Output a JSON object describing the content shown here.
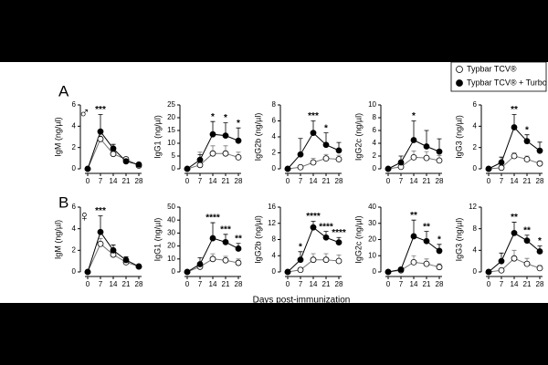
{
  "figure": {
    "panel_labels": [
      "A",
      "B"
    ],
    "sex_symbols": [
      "♂",
      "♀"
    ],
    "x_label": "Days post-immunization"
  },
  "chart_data": [
    {
      "type": "line",
      "y_label": "IgM (ng/µl)",
      "x": [
        0,
        7,
        14,
        21,
        28
      ],
      "xlim": [
        0,
        28
      ],
      "xticks": [
        0,
        7,
        14,
        21,
        28
      ],
      "ylim": [
        0,
        6
      ],
      "yticks": [
        0,
        2,
        4,
        6
      ],
      "series": [
        {
          "name": "Typbar TCV®",
          "color": "#777777",
          "marker_fill": "#ffffff",
          "values": [
            0,
            2.8,
            1.4,
            0.9,
            0.3
          ],
          "errors": [
            0,
            0.5,
            0.3,
            0.2,
            0.1
          ]
        },
        {
          "name": "Typbar TCV® + Turbo",
          "color": "#000000",
          "marker_fill": "#000000",
          "values": [
            0,
            3.5,
            1.9,
            0.7,
            0.4
          ],
          "errors": [
            0,
            1.6,
            0.4,
            0.2,
            0.1
          ]
        }
      ],
      "annotations": [
        {
          "x": 7,
          "text": "***"
        }
      ]
    },
    {
      "type": "line",
      "y_label": "IgG1 (ng/µl)",
      "x": [
        0,
        7,
        14,
        21,
        28
      ],
      "xlim": [
        0,
        28
      ],
      "xticks": [
        0,
        7,
        14,
        21,
        28
      ],
      "ylim": [
        0,
        25
      ],
      "yticks": [
        0,
        5,
        10,
        15,
        20,
        25
      ],
      "series": [
        {
          "name": "Typbar TCV®",
          "color": "#777777",
          "marker_fill": "#ffffff",
          "values": [
            0,
            1.5,
            6,
            6,
            4.5
          ],
          "errors": [
            0,
            5,
            3,
            3,
            2
          ]
        },
        {
          "name": "Typbar TCV® + Turbo",
          "color": "#000000",
          "marker_fill": "#000000",
          "values": [
            0,
            3.5,
            13.5,
            13,
            11
          ],
          "errors": [
            0,
            2,
            5,
            5,
            5
          ]
        }
      ],
      "annotations": [
        {
          "x": 14,
          "text": "*"
        },
        {
          "x": 21,
          "text": "*"
        },
        {
          "x": 28,
          "text": "*"
        }
      ]
    },
    {
      "type": "line",
      "y_label": "IgG2b (ng/µl)",
      "x": [
        0,
        7,
        14,
        21,
        28
      ],
      "xlim": [
        0,
        28
      ],
      "xticks": [
        0,
        7,
        14,
        21,
        28
      ],
      "ylim": [
        0,
        8
      ],
      "yticks": [
        0,
        2,
        4,
        6,
        8
      ],
      "series": [
        {
          "name": "Typbar TCV®",
          "color": "#777777",
          "marker_fill": "#ffffff",
          "values": [
            0,
            0.2,
            0.8,
            1.3,
            1.2
          ],
          "errors": [
            0,
            0.2,
            0.5,
            0.5,
            0.5
          ]
        },
        {
          "name": "Typbar TCV® + Turbo",
          "color": "#000000",
          "marker_fill": "#000000",
          "values": [
            0,
            1.8,
            4.5,
            3,
            2.3
          ],
          "errors": [
            0,
            2,
            1.5,
            1.5,
            1
          ]
        }
      ],
      "annotations": [
        {
          "x": 14,
          "text": "***"
        },
        {
          "x": 21,
          "text": "*"
        }
      ]
    },
    {
      "type": "line",
      "y_label": "IgG2c (ng/µl)",
      "x": [
        0,
        7,
        14,
        21,
        28
      ],
      "xlim": [
        0,
        28
      ],
      "xticks": [
        0,
        7,
        14,
        21,
        28
      ],
      "ylim": [
        0,
        10
      ],
      "yticks": [
        0,
        2,
        4,
        6,
        8,
        10
      ],
      "series": [
        {
          "name": "Typbar TCV®",
          "color": "#777777",
          "marker_fill": "#ffffff",
          "values": [
            0,
            0.3,
            1.8,
            1.7,
            1.3
          ],
          "errors": [
            0,
            0.3,
            1,
            1,
            0.8
          ]
        },
        {
          "name": "Typbar TCV® + Turbo",
          "color": "#000000",
          "marker_fill": "#000000",
          "values": [
            0,
            1,
            4.5,
            3.5,
            2.7
          ],
          "errors": [
            0,
            1,
            3,
            2.5,
            2
          ]
        }
      ],
      "annotations": [
        {
          "x": 14,
          "text": "*"
        }
      ]
    },
    {
      "type": "line",
      "y_label": "IgG3 (ng/µl)",
      "x": [
        0,
        7,
        14,
        21,
        28
      ],
      "xlim": [
        0,
        28
      ],
      "xticks": [
        0,
        7,
        14,
        21,
        28
      ],
      "ylim": [
        0,
        6
      ],
      "yticks": [
        0,
        2,
        4,
        6
      ],
      "series": [
        {
          "name": "Typbar TCV®",
          "color": "#777777",
          "marker_fill": "#ffffff",
          "values": [
            0,
            0.1,
            1.2,
            0.9,
            0.5
          ],
          "errors": [
            0,
            0.1,
            0.3,
            0.3,
            0.2
          ]
        },
        {
          "name": "Typbar TCV® + Turbo",
          "color": "#000000",
          "marker_fill": "#000000",
          "values": [
            0,
            0.6,
            3.9,
            2.6,
            1.7
          ],
          "errors": [
            0,
            0.5,
            1.2,
            0.6,
            0.8
          ]
        }
      ],
      "annotations": [
        {
          "x": 14,
          "text": "**"
        },
        {
          "x": 21,
          "text": "*"
        }
      ]
    },
    {
      "type": "line",
      "y_label": "IgM (ng/µl)",
      "x": [
        0,
        7,
        14,
        21,
        28
      ],
      "xlim": [
        0,
        28
      ],
      "xticks": [
        0,
        7,
        14,
        21,
        28
      ],
      "ylim": [
        0,
        6
      ],
      "yticks": [
        0,
        2,
        4,
        6
      ],
      "series": [
        {
          "name": "Typbar TCV®",
          "color": "#777777",
          "marker_fill": "#ffffff",
          "values": [
            0,
            2.6,
            1.6,
            0.9,
            0.5
          ],
          "errors": [
            0,
            0.5,
            0.3,
            0.2,
            0.1
          ]
        },
        {
          "name": "Typbar TCV® + Turbo",
          "color": "#000000",
          "marker_fill": "#000000",
          "values": [
            0,
            3.7,
            2,
            1.1,
            0.5
          ],
          "errors": [
            0,
            1.5,
            0.5,
            0.3,
            0.2
          ]
        }
      ],
      "annotations": [
        {
          "x": 7,
          "text": "***"
        }
      ]
    },
    {
      "type": "line",
      "y_label": "IgG1 (ng/µl)",
      "x": [
        0,
        7,
        14,
        21,
        28
      ],
      "xlim": [
        0,
        28
      ],
      "xticks": [
        0,
        7,
        14,
        21,
        28
      ],
      "ylim": [
        0,
        50
      ],
      "yticks": [
        0,
        10,
        20,
        30,
        40,
        50
      ],
      "series": [
        {
          "name": "Typbar TCV®",
          "color": "#777777",
          "marker_fill": "#ffffff",
          "values": [
            0,
            4,
            10,
            9,
            7
          ],
          "errors": [
            0,
            2,
            4,
            3,
            3
          ]
        },
        {
          "name": "Typbar TCV® + Turbo",
          "color": "#000000",
          "marker_fill": "#000000",
          "values": [
            0,
            6,
            26,
            23,
            18
          ],
          "errors": [
            0,
            5,
            12,
            6,
            4
          ]
        }
      ],
      "annotations": [
        {
          "x": 14,
          "text": "****"
        },
        {
          "x": 21,
          "text": "***"
        },
        {
          "x": 28,
          "text": "**"
        }
      ]
    },
    {
      "type": "line",
      "y_label": "IgG2b (ng/µl)",
      "x": [
        0,
        7,
        14,
        21,
        28
      ],
      "xlim": [
        0,
        28
      ],
      "xticks": [
        0,
        7,
        14,
        21,
        28
      ],
      "ylim": [
        0,
        16
      ],
      "yticks": [
        0,
        4,
        8,
        12,
        16
      ],
      "series": [
        {
          "name": "Typbar TCV®",
          "color": "#777777",
          "marker_fill": "#ffffff",
          "values": [
            0,
            0.5,
            3,
            3,
            2.7
          ],
          "errors": [
            0,
            0.5,
            1.5,
            1.5,
            1.5
          ]
        },
        {
          "name": "Typbar TCV® + Turbo",
          "color": "#000000",
          "marker_fill": "#000000",
          "values": [
            0,
            3,
            11,
            8.5,
            7.3
          ],
          "errors": [
            0,
            2,
            1.5,
            1.5,
            1.2
          ]
        }
      ],
      "annotations": [
        {
          "x": 7,
          "text": "*"
        },
        {
          "x": 14,
          "text": "****"
        },
        {
          "x": 21,
          "text": "****"
        },
        {
          "x": 28,
          "text": "****"
        }
      ]
    },
    {
      "type": "line",
      "y_label": "IgG2c (ng/µl)",
      "x": [
        0,
        7,
        14,
        21,
        28
      ],
      "xlim": [
        0,
        28
      ],
      "xticks": [
        0,
        7,
        14,
        21,
        28
      ],
      "ylim": [
        0,
        40
      ],
      "yticks": [
        0,
        10,
        20,
        30,
        40
      ],
      "series": [
        {
          "name": "Typbar TCV®",
          "color": "#777777",
          "marker_fill": "#ffffff",
          "values": [
            0,
            1,
            6,
            5,
            3
          ],
          "errors": [
            0,
            1,
            4,
            3,
            2
          ]
        },
        {
          "name": "Typbar TCV® + Turbo",
          "color": "#000000",
          "marker_fill": "#000000",
          "values": [
            0,
            1.5,
            22,
            19,
            13
          ],
          "errors": [
            0,
            1,
            10,
            6,
            4
          ]
        }
      ],
      "annotations": [
        {
          "x": 14,
          "text": "**"
        },
        {
          "x": 21,
          "text": "**"
        },
        {
          "x": 28,
          "text": "*"
        }
      ]
    },
    {
      "type": "line",
      "y_label": "IgG3 (ng/µl)",
      "x": [
        0,
        7,
        14,
        21,
        28
      ],
      "xlim": [
        0,
        28
      ],
      "xticks": [
        0,
        7,
        14,
        21,
        28
      ],
      "ylim": [
        0,
        12
      ],
      "yticks": [
        0,
        4,
        8,
        12
      ],
      "series": [
        {
          "name": "Typbar TCV®",
          "color": "#777777",
          "marker_fill": "#ffffff",
          "values": [
            0,
            0.3,
            2.5,
            1.5,
            0.7
          ],
          "errors": [
            0,
            0.3,
            1.5,
            1,
            0.5
          ]
        },
        {
          "name": "Typbar TCV® + Turbo",
          "color": "#000000",
          "marker_fill": "#000000",
          "values": [
            0,
            2,
            7.2,
            5.8,
            3.8
          ],
          "errors": [
            0,
            1.5,
            2,
            1,
            1
          ]
        }
      ],
      "annotations": [
        {
          "x": 14,
          "text": "**"
        },
        {
          "x": 21,
          "text": "**"
        },
        {
          "x": 28,
          "text": "*"
        }
      ]
    }
  ]
}
